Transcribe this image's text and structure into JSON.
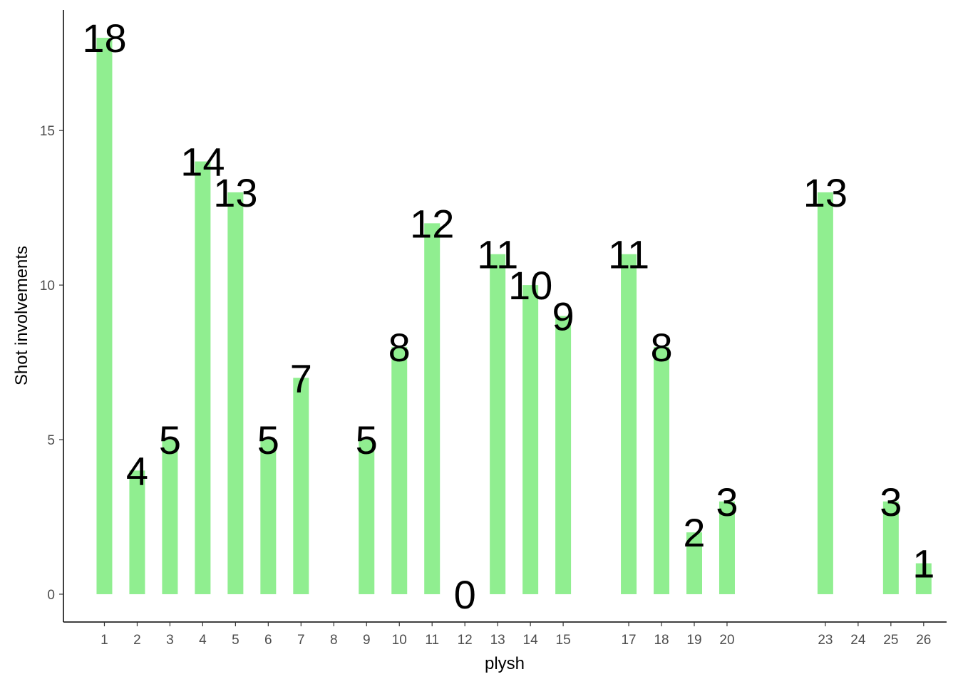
{
  "chart_data": {
    "type": "bar",
    "title": "",
    "xlabel": "plysh",
    "ylabel": "Shot involvements",
    "categories": [
      "1",
      "2",
      "3",
      "4",
      "5",
      "6",
      "7",
      "8",
      "9",
      "10",
      "11",
      "12",
      "13",
      "14",
      "15",
      "17",
      "18",
      "19",
      "20",
      "23",
      "24",
      "25",
      "26"
    ],
    "values": [
      18,
      4,
      5,
      14,
      13,
      5,
      7,
      null,
      5,
      8,
      12,
      0,
      11,
      10,
      9,
      11,
      8,
      2,
      3,
      13,
      null,
      3,
      1
    ],
    "data_labels": [
      "18",
      "4",
      "5",
      "14",
      "13",
      "5",
      "7",
      "",
      "5",
      "8",
      "12",
      "0",
      "11",
      "10",
      "9",
      "11",
      "8",
      "2",
      "3",
      "13",
      "",
      "3",
      "1"
    ],
    "x_tick_labels": [
      "1",
      "2",
      "3",
      "4",
      "5",
      "6",
      "7",
      "8",
      "9",
      "10",
      "11",
      "12",
      "13",
      "14",
      "15",
      "17",
      "18",
      "19",
      "20",
      "23",
      "24",
      "25",
      "26"
    ],
    "y_ticks": [
      0,
      5,
      10,
      15
    ],
    "y_tick_labels": [
      "0",
      "5",
      "10",
      "15"
    ],
    "ylim": [
      -0.9,
      18.9
    ],
    "xlim": [
      -0.25,
      26.7
    ],
    "grid": false,
    "legend": "none",
    "bar_color": "#90EE90",
    "axis_color": "#000000",
    "tick_label_color": "#4d4d4d",
    "label_color": "#000000"
  }
}
